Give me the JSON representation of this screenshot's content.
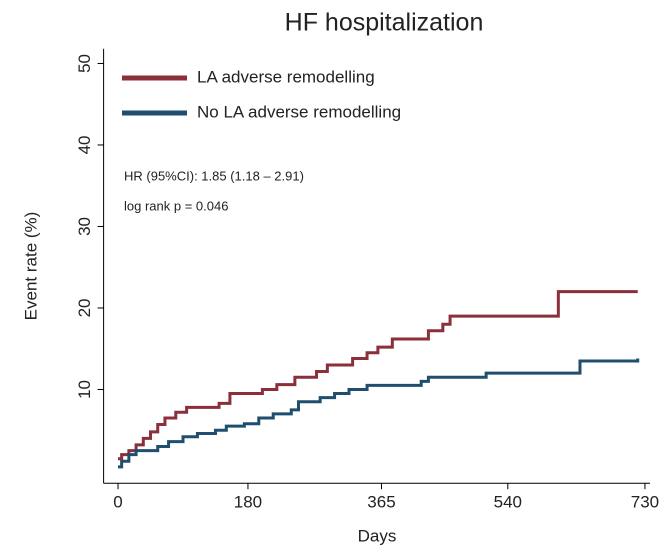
{
  "chart_data": {
    "type": "line",
    "step": "post",
    "title": "HF hospitalization",
    "xlabel": "Days",
    "ylabel": "Event rate (%)",
    "annotations": [
      "HR (95%CI): 1.85 (1.18 – 2.91)",
      "log rank p = 0.046"
    ],
    "xlim": [
      -20,
      737
    ],
    "ylim": [
      -1.5,
      51.8
    ],
    "xticks": [
      0,
      180,
      365,
      540,
      730
    ],
    "yticks": [
      10,
      20,
      30,
      40,
      50
    ],
    "legend": "top-left",
    "series": [
      {
        "name": "LA adverse remodelling",
        "color": "#8b2f3a",
        "x": [
          0,
          5,
          15,
          25,
          35,
          45,
          55,
          65,
          80,
          95,
          140,
          155,
          200,
          220,
          245,
          275,
          290,
          325,
          345,
          360,
          380,
          430,
          450,
          460,
          610,
          720
        ],
        "values": [
          1.5,
          2,
          2.5,
          3.2,
          4,
          4.8,
          5.7,
          6.5,
          7.2,
          7.8,
          8.3,
          9.5,
          10,
          10.6,
          11.5,
          12.2,
          13,
          13.8,
          14.5,
          15.2,
          16.2,
          17.2,
          18,
          19,
          22,
          22
        ]
      },
      {
        "name": "No LA adverse remodelling",
        "color": "#1f4e6e",
        "x": [
          0,
          5,
          15,
          25,
          55,
          70,
          90,
          110,
          135,
          150,
          175,
          195,
          215,
          240,
          250,
          280,
          300,
          320,
          345,
          420,
          430,
          510,
          640,
          720
        ],
        "values": [
          0.5,
          1.2,
          2,
          2.5,
          3,
          3.6,
          4.2,
          4.6,
          5,
          5.5,
          5.8,
          6.5,
          7,
          7.5,
          8.5,
          9,
          9.5,
          10,
          10.5,
          11,
          11.5,
          12,
          13.5,
          13.8
        ]
      }
    ]
  }
}
